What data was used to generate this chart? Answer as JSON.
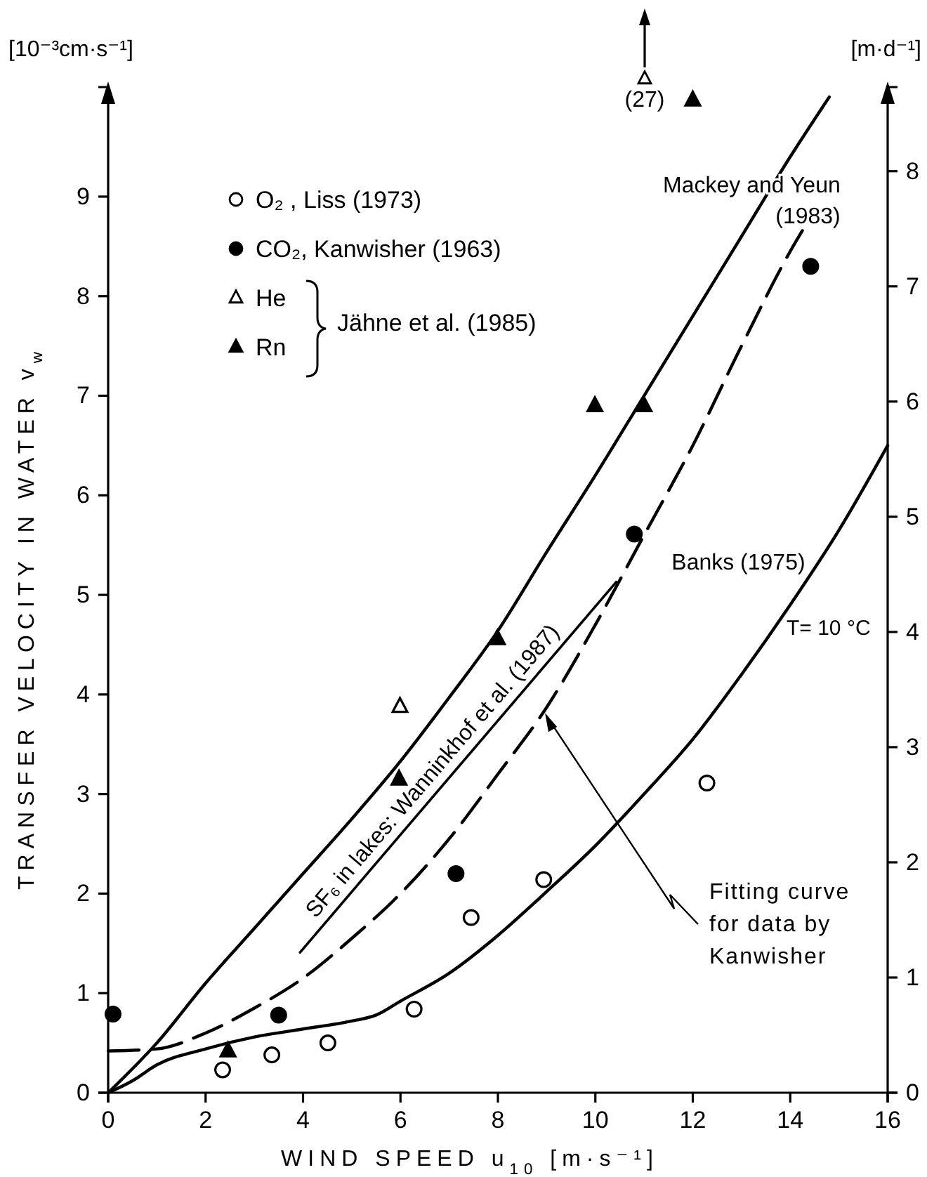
{
  "chart_data": {
    "type": "line",
    "xlabel": "WIND SPEED u$_{10}$ [m·s⁻¹]",
    "ylabel": "TRANSFER VELOCITY IN WATER v$_{w}$",
    "y2label": "[m·d⁻¹]",
    "xlim": [
      0,
      16
    ],
    "xticks": [
      0,
      2,
      4,
      6,
      8,
      10,
      12,
      14,
      16
    ],
    "ylim": [
      0,
      10.1
    ],
    "yticks": [
      0,
      1,
      2,
      3,
      4,
      5,
      6,
      7,
      8,
      9
    ],
    "y2lim": [
      0,
      8.73
    ],
    "y2ticks": [
      0,
      1,
      2,
      3,
      4,
      5,
      6,
      7,
      8
    ],
    "grid": false,
    "legend": "top left",
    "series": [
      {
        "name": "Mackey and Yeun (1983)",
        "color": "#000000",
        "line_style": "solid",
        "marker": "none",
        "x": [
          0,
          1,
          2,
          3,
          4,
          5,
          6,
          7,
          8,
          9,
          10,
          11,
          12,
          13,
          14,
          14.8
        ],
        "values": [
          0,
          0.5,
          1.1,
          1.65,
          2.2,
          2.75,
          3.33,
          3.97,
          4.64,
          5.43,
          6.2,
          7.0,
          7.8,
          8.6,
          9.4,
          10.0
        ]
      },
      {
        "color": "#000000",
        "line_style": "dashed",
        "marker": "none",
        "x": [
          0,
          1,
          2,
          3,
          4,
          5,
          6,
          7,
          8,
          9,
          10,
          11,
          12,
          13,
          14,
          14.3
        ],
        "values": [
          0.42,
          0.44,
          0.6,
          0.85,
          1.15,
          1.55,
          2.0,
          2.55,
          3.2,
          3.87,
          4.7,
          5.6,
          6.5,
          7.5,
          8.45,
          8.7
        ]
      },
      {
        "name": "Banks (1975)",
        "color": "#000000",
        "line_style": "solid",
        "marker": "none",
        "x": [
          0,
          0.5,
          1,
          2,
          3,
          4,
          5,
          5.5,
          6,
          7,
          8,
          9,
          10,
          11,
          12,
          13,
          14,
          15,
          16
        ],
        "values": [
          0,
          0.12,
          0.28,
          0.44,
          0.56,
          0.64,
          0.72,
          0.78,
          0.92,
          1.2,
          1.58,
          2.02,
          2.48,
          3.0,
          3.55,
          4.2,
          4.9,
          5.65,
          6.5
        ]
      },
      {
        "name": "SF₆ in lakes: Wanninkhof et al. (1987)",
        "color": "#000000",
        "line_style": "solid",
        "marker": "none",
        "x": [
          3.94,
          10.43
        ],
        "values": [
          1.41,
          5.13
        ]
      },
      {
        "name": "O₂ , Liss (1973)",
        "type": "scatter",
        "color": "#ffffff",
        "marker": "circle",
        "x": [
          2.35,
          3.36,
          4.51,
          6.28,
          7.45,
          8.94,
          12.29
        ],
        "values": [
          0.23,
          0.38,
          0.5,
          0.84,
          1.76,
          2.14,
          3.11
        ]
      },
      {
        "name": "CO₂, Kanwisher (1963)",
        "type": "scatter",
        "color": "#000000",
        "marker": "circle",
        "x": [
          0.1,
          3.5,
          7.14,
          10.8,
          14.42
        ],
        "values": [
          0.79,
          0.78,
          2.2,
          5.61,
          8.3
        ]
      },
      {
        "name": "He",
        "type": "scatter",
        "color": "#ffffff",
        "marker": "triangle",
        "x": [
          5.99
        ],
        "values": [
          3.88
        ]
      },
      {
        "name": "Rn",
        "type": "scatter",
        "color": "#000000",
        "marker": "triangle",
        "x": [
          2.46,
          5.97,
          7.99,
          9.99,
          11.0,
          12.0
        ],
        "values": [
          0.42,
          3.15,
          4.56,
          6.9,
          6.9,
          9.97
        ]
      }
    ],
    "annotations": [
      "Jähne et al. (1985)",
      "[10⁻³cm·s⁻¹]",
      {
        "text": "Fitting curve for data by Kanwisher",
        "x": 8.99,
        "y": 3.79
      },
      "T= 10 °C",
      "(27)"
    ]
  }
}
